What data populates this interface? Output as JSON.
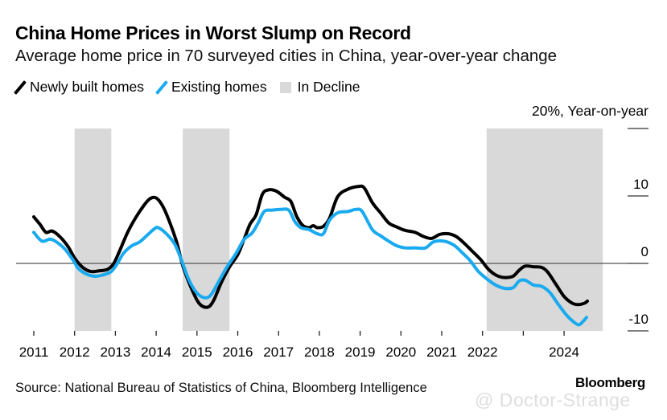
{
  "header": {
    "title": "China Home Prices in Worst Slump on Record",
    "subtitle": "Average home price in 70 surveyed cities in China, year-over-year change"
  },
  "legend": {
    "items": [
      {
        "label": "Newly built homes",
        "color": "#000000",
        "icon": "line"
      },
      {
        "label": "Existing homes",
        "color": "#1aaaf0",
        "icon": "line"
      },
      {
        "label": "In Decline",
        "color": "#d9d9d9",
        "icon": "box"
      }
    ]
  },
  "footer": {
    "source": "Source: National Bureau of Statistics of China, Bloomberg Intelligence",
    "brand": "Bloomberg",
    "watermark": "@ Doctor-Strange"
  },
  "chart_data": {
    "type": "line",
    "title": "China Home Prices in Worst Slump on Record",
    "subtitle": "Average home price in 70 surveyed cities in China, year-over-year change",
    "ylabel": "20%, Year-on-year",
    "ylim": [
      -10,
      20
    ],
    "xlim": [
      2011.0,
      2025.05
    ],
    "y_ticks": [
      {
        "value": 20,
        "label": "20%, Year-on-year"
      },
      {
        "value": 10,
        "label": "10"
      },
      {
        "value": 0,
        "label": "0"
      },
      {
        "value": -10,
        "label": "-10"
      }
    ],
    "x_ticks": [
      {
        "value": 2011,
        "label": "2011"
      },
      {
        "value": 2012,
        "label": "2012"
      },
      {
        "value": 2013,
        "label": "2013"
      },
      {
        "value": 2014,
        "label": "2014"
      },
      {
        "value": 2015,
        "label": "2015"
      },
      {
        "value": 2016,
        "label": "2016"
      },
      {
        "value": 2017,
        "label": "2017"
      },
      {
        "value": 2018,
        "label": "2018"
      },
      {
        "value": 2019,
        "label": "2019"
      },
      {
        "value": 2020,
        "label": "2020"
      },
      {
        "value": 2021,
        "label": "2021"
      },
      {
        "value": 2022,
        "label": "2022"
      },
      {
        "value": 2023,
        "label": ""
      },
      {
        "value": 2024,
        "label": "2024"
      }
    ],
    "zero_line": true,
    "grid": false,
    "legend_position": "top-left",
    "shaded_regions": [
      {
        "label": "In Decline",
        "start": 2012.0,
        "end": 2012.9
      },
      {
        "label": "In Decline",
        "start": 2014.65,
        "end": 2015.8
      },
      {
        "label": "In Decline",
        "start": 2022.1,
        "end": 2024.95
      }
    ],
    "series": [
      {
        "name": "Newly built homes",
        "color": "#000000",
        "points": [
          [
            2011.0,
            6.9
          ],
          [
            2011.15,
            5.8
          ],
          [
            2011.3,
            4.6
          ],
          [
            2011.45,
            4.8
          ],
          [
            2011.65,
            3.9
          ],
          [
            2011.85,
            2.4
          ],
          [
            2012.0,
            0.8
          ],
          [
            2012.2,
            -0.6
          ],
          [
            2012.4,
            -1.2
          ],
          [
            2012.6,
            -1.1
          ],
          [
            2012.8,
            -0.9
          ],
          [
            2012.95,
            -0.1
          ],
          [
            2013.1,
            1.8
          ],
          [
            2013.3,
            4.6
          ],
          [
            2013.5,
            6.8
          ],
          [
            2013.7,
            8.6
          ],
          [
            2013.85,
            9.6
          ],
          [
            2014.0,
            9.7
          ],
          [
            2014.15,
            8.6
          ],
          [
            2014.3,
            6.6
          ],
          [
            2014.5,
            3.2
          ],
          [
            2014.65,
            -0.3
          ],
          [
            2014.85,
            -3.5
          ],
          [
            2015.05,
            -5.9
          ],
          [
            2015.25,
            -6.5
          ],
          [
            2015.4,
            -5.6
          ],
          [
            2015.6,
            -2.8
          ],
          [
            2015.8,
            -0.5
          ],
          [
            2016.0,
            1.3
          ],
          [
            2016.15,
            3.5
          ],
          [
            2016.3,
            5.8
          ],
          [
            2016.45,
            7.2
          ],
          [
            2016.6,
            10.2
          ],
          [
            2016.75,
            10.9
          ],
          [
            2016.95,
            10.7
          ],
          [
            2017.15,
            9.8
          ],
          [
            2017.3,
            9.2
          ],
          [
            2017.45,
            6.9
          ],
          [
            2017.6,
            5.6
          ],
          [
            2017.75,
            5.3
          ],
          [
            2017.85,
            5.6
          ],
          [
            2017.95,
            5.3
          ],
          [
            2018.1,
            5.5
          ],
          [
            2018.25,
            6.7
          ],
          [
            2018.45,
            9.9
          ],
          [
            2018.7,
            11.0
          ],
          [
            2018.95,
            11.4
          ],
          [
            2019.1,
            11.2
          ],
          [
            2019.3,
            9.0
          ],
          [
            2019.5,
            7.5
          ],
          [
            2019.7,
            6.0
          ],
          [
            2019.9,
            5.4
          ],
          [
            2020.1,
            4.9
          ],
          [
            2020.35,
            4.6
          ],
          [
            2020.55,
            4.0
          ],
          [
            2020.75,
            3.7
          ],
          [
            2020.95,
            4.3
          ],
          [
            2021.15,
            4.4
          ],
          [
            2021.35,
            4.0
          ],
          [
            2021.55,
            3.0
          ],
          [
            2021.75,
            1.8
          ],
          [
            2021.95,
            0.6
          ],
          [
            2022.15,
            -0.9
          ],
          [
            2022.35,
            -1.8
          ],
          [
            2022.55,
            -2.1
          ],
          [
            2022.75,
            -1.9
          ],
          [
            2022.9,
            -1.0
          ],
          [
            2023.05,
            -0.4
          ],
          [
            2023.25,
            -0.5
          ],
          [
            2023.45,
            -0.6
          ],
          [
            2023.6,
            -1.3
          ],
          [
            2023.8,
            -3.1
          ],
          [
            2024.0,
            -4.9
          ],
          [
            2024.2,
            -5.9
          ],
          [
            2024.35,
            -6.1
          ],
          [
            2024.5,
            -5.9
          ],
          [
            2024.57,
            -5.6
          ]
        ]
      },
      {
        "name": "Existing homes",
        "color": "#1aaaf0",
        "points": [
          [
            2011.0,
            4.6
          ],
          [
            2011.2,
            3.3
          ],
          [
            2011.4,
            3.6
          ],
          [
            2011.55,
            3.2
          ],
          [
            2011.75,
            2.2
          ],
          [
            2011.95,
            0.6
          ],
          [
            2012.1,
            -0.8
          ],
          [
            2012.3,
            -1.6
          ],
          [
            2012.5,
            -1.9
          ],
          [
            2012.7,
            -1.7
          ],
          [
            2012.9,
            -1.2
          ],
          [
            2013.05,
            0.0
          ],
          [
            2013.2,
            1.5
          ],
          [
            2013.4,
            2.6
          ],
          [
            2013.6,
            3.2
          ],
          [
            2013.8,
            4.3
          ],
          [
            2013.95,
            5.1
          ],
          [
            2014.05,
            5.3
          ],
          [
            2014.25,
            4.4
          ],
          [
            2014.45,
            2.9
          ],
          [
            2014.6,
            0.8
          ],
          [
            2014.8,
            -2.4
          ],
          [
            2015.0,
            -4.4
          ],
          [
            2015.2,
            -5.1
          ],
          [
            2015.35,
            -4.6
          ],
          [
            2015.55,
            -2.5
          ],
          [
            2015.75,
            -0.4
          ],
          [
            2015.95,
            1.4
          ],
          [
            2016.15,
            3.5
          ],
          [
            2016.35,
            4.5
          ],
          [
            2016.5,
            6.0
          ],
          [
            2016.65,
            7.7
          ],
          [
            2016.85,
            7.9
          ],
          [
            2017.05,
            8.0
          ],
          [
            2017.25,
            7.9
          ],
          [
            2017.4,
            6.2
          ],
          [
            2017.55,
            5.3
          ],
          [
            2017.75,
            5.0
          ],
          [
            2017.95,
            4.4
          ],
          [
            2018.1,
            4.4
          ],
          [
            2018.25,
            6.4
          ],
          [
            2018.45,
            7.5
          ],
          [
            2018.7,
            7.7
          ],
          [
            2018.9,
            8.0
          ],
          [
            2019.05,
            7.7
          ],
          [
            2019.3,
            5.0
          ],
          [
            2019.5,
            4.1
          ],
          [
            2019.7,
            3.3
          ],
          [
            2019.9,
            2.6
          ],
          [
            2020.1,
            2.3
          ],
          [
            2020.35,
            2.3
          ],
          [
            2020.6,
            2.3
          ],
          [
            2020.8,
            3.2
          ],
          [
            2021.05,
            3.3
          ],
          [
            2021.3,
            2.7
          ],
          [
            2021.5,
            1.6
          ],
          [
            2021.7,
            0.4
          ],
          [
            2021.9,
            -1.2
          ],
          [
            2022.15,
            -2.5
          ],
          [
            2022.35,
            -3.3
          ],
          [
            2022.55,
            -3.7
          ],
          [
            2022.75,
            -3.6
          ],
          [
            2022.9,
            -2.6
          ],
          [
            2023.05,
            -2.5
          ],
          [
            2023.25,
            -3.2
          ],
          [
            2023.45,
            -3.4
          ],
          [
            2023.65,
            -4.3
          ],
          [
            2023.85,
            -6.0
          ],
          [
            2024.05,
            -7.6
          ],
          [
            2024.2,
            -8.5
          ],
          [
            2024.35,
            -9.1
          ],
          [
            2024.45,
            -8.7
          ],
          [
            2024.55,
            -8.0
          ]
        ]
      }
    ]
  }
}
